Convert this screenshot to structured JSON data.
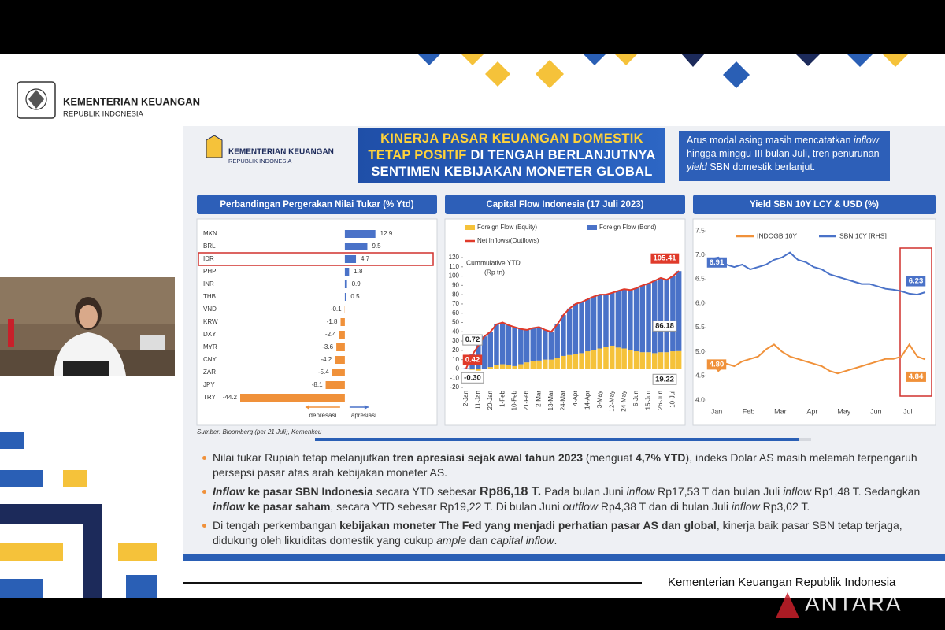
{
  "header": {
    "org": "KEMENTERIAN KEUANGAN",
    "country": "REPUBLIK INDONESIA"
  },
  "slide": {
    "logo": {
      "org": "KEMENTERIAN KEUANGAN",
      "country": "REPUBLIK INDONESIA"
    },
    "title": [
      {
        "text": "KINERJA PASAR KEUANGAN DOMESTIK TETAP POSITIF",
        "style": "highlight"
      },
      {
        "text": " DI TENGAH BERLANJUTNYA SENTIMEN KEBIJAKAN MONETER GLOBAL"
      }
    ],
    "summary": [
      {
        "text": "Arus modal asing masih mencatatkan "
      },
      {
        "text": "inflow",
        "style": "italic"
      },
      {
        "text": " hingga minggu-III bulan Juli, tren penurunan "
      },
      {
        "text": "yield",
        "style": "italic"
      },
      {
        "text": " SBN domestik berlanjut."
      }
    ],
    "source": "Sumber: Bloomberg (per 21 Juli), Kemenkeu",
    "bullets": [
      [
        {
          "text": "Nilai tukar Rupiah tetap melanjutkan "
        },
        {
          "text": "tren apresiasi sejak awal tahun 2023",
          "style": "bold"
        },
        {
          "text": " (menguat "
        },
        {
          "text": "4,7% YTD",
          "style": "bold"
        },
        {
          "text": "), indeks Dolar AS masih melemah terpengaruh persepsi pasar atas arah kebijakan moneter AS."
        }
      ],
      [
        {
          "text": "Inflow",
          "style": "bold-italic"
        },
        {
          "text": " ke pasar SBN Indonesia",
          "style": "bold"
        },
        {
          "text": " secara YTD sebesar "
        },
        {
          "text": "Rp86,18 T.",
          "style": "emphasis"
        },
        {
          "text": " Pada bulan Juni "
        },
        {
          "text": "inflow",
          "style": "italic"
        },
        {
          "text": " Rp17,53 T dan bulan Juli "
        },
        {
          "text": "inflow",
          "style": "italic"
        },
        {
          "text": " Rp1,48 T. Sedangkan "
        },
        {
          "text": "inflow",
          "style": "bold-italic"
        },
        {
          "text": " ke pasar saham",
          "style": "bold"
        },
        {
          "text": ", secara YTD sebesar Rp19,22 T. Di bulan Juni "
        },
        {
          "text": "outflow",
          "style": "italic"
        },
        {
          "text": " Rp4,38 T dan di bulan Juli "
        },
        {
          "text": "inflow",
          "style": "italic"
        },
        {
          "text": " Rp3,02 T."
        }
      ],
      [
        {
          "text": "Di tengah perkembangan "
        },
        {
          "text": "kebijakan moneter The Fed yang menjadi perhatian pasar AS dan global",
          "style": "bold"
        },
        {
          "text": ", kinerja baik pasar SBN tetap terjaga, didukung oleh likuiditas domestik yang cukup "
        },
        {
          "text": "ample",
          "style": "italic"
        },
        {
          "text": " dan "
        },
        {
          "text": "capital inflow",
          "style": "italic"
        },
        {
          "text": "."
        }
      ]
    ]
  },
  "chart_data": [
    {
      "type": "hbar",
      "title": "Perbandingan Pergerakan Nilai Tukar (% Ytd)",
      "categories": [
        "MXN",
        "BRL",
        "IDR",
        "PHP",
        "INR",
        "THB",
        "VND",
        "KRW",
        "DXY",
        "MYR",
        "CNY",
        "ZAR",
        "JPY",
        "TRY"
      ],
      "values": [
        12.9,
        9.5,
        4.7,
        1.8,
        0.9,
        0.5,
        -0.1,
        -1.8,
        -2.4,
        -3.6,
        -4.2,
        -5.4,
        -8.1,
        -44.2
      ],
      "colors": {
        "positive": "#4a72c8",
        "negative": "#f0913a"
      },
      "xlim": [
        -45,
        15
      ],
      "highlight": 2,
      "annotations": {
        "left": "depresasi",
        "right": "apresiasi"
      }
    },
    {
      "type": "stacked-bar-line",
      "title": "Capital Flow Indonesia (17 Juli 2023)",
      "y_label": [
        "Cummulative YTD",
        "(Rp tn)"
      ],
      "categories": [
        "2-Jan",
        null,
        "11-Jan",
        null,
        "20-Jan",
        null,
        "1-Feb",
        null,
        "10-Feb",
        null,
        "21-Feb",
        null,
        "2-Mar",
        null,
        "13-Mar",
        null,
        "24-Mar",
        null,
        "4-Apr",
        null,
        "14-Apr",
        null,
        "3-May",
        null,
        "12-May",
        null,
        "24-May",
        null,
        "6-Jun",
        null,
        "15-Jun",
        null,
        "26-Jun",
        null,
        "10-Jul",
        null
      ],
      "series": [
        {
          "name": "Foreign Flow (Equity)",
          "color": "#f5c23a",
          "kind": "bar",
          "values": [
            -0.3,
            -1,
            -2,
            0,
            2,
            4,
            5,
            4,
            3,
            5,
            7,
            8,
            9,
            10,
            10,
            12,
            14,
            15,
            16,
            17,
            19,
            20,
            22,
            24,
            25,
            23,
            22,
            20,
            19,
            18,
            18,
            17,
            18,
            18,
            19,
            19.22
          ],
          "value_labels": [
            "-0.30",
            null,
            null,
            null,
            null,
            null,
            null,
            null,
            null,
            null,
            null,
            null,
            null,
            null,
            null,
            null,
            null,
            null,
            null,
            null,
            null,
            null,
            null,
            null,
            null,
            null,
            null,
            null,
            null,
            null,
            null,
            null,
            null,
            null,
            null,
            "19.22"
          ]
        },
        {
          "name": "Foreign Flow (Bond)",
          "color": "#4a72c8",
          "kind": "bar",
          "values": [
            0.72,
            16,
            27,
            35,
            38,
            44,
            45,
            43,
            42,
            38,
            35,
            36,
            36,
            32,
            30,
            36,
            44,
            50,
            54,
            55,
            56,
            58,
            58,
            56,
            57,
            61,
            64,
            65,
            68,
            72,
            74,
            78,
            80,
            78,
            81,
            86.18
          ],
          "value_labels": [
            "0.72",
            null,
            null,
            null,
            null,
            null,
            null,
            null,
            null,
            null,
            null,
            null,
            null,
            null,
            null,
            null,
            null,
            null,
            null,
            null,
            null,
            null,
            null,
            null,
            null,
            null,
            null,
            null,
            null,
            null,
            null,
            null,
            null,
            null,
            null,
            "86.18"
          ]
        },
        {
          "name": "Net Inflows/(Outflows)",
          "color": "#e03a2a",
          "kind": "line",
          "values": [
            0.42,
            15,
            25,
            35,
            40,
            48,
            50,
            47,
            45,
            43,
            42,
            44,
            45,
            42,
            40,
            48,
            58,
            65,
            70,
            72,
            75,
            78,
            80,
            80,
            82,
            84,
            86,
            85,
            87,
            90,
            92,
            95,
            98,
            96,
            100,
            105.41
          ],
          "value_labels": [
            "0.42",
            null,
            null,
            null,
            null,
            null,
            null,
            null,
            null,
            null,
            null,
            null,
            null,
            null,
            null,
            null,
            null,
            null,
            null,
            null,
            null,
            null,
            null,
            null,
            null,
            null,
            null,
            null,
            null,
            null,
            null,
            null,
            null,
            null,
            null,
            "105.41"
          ]
        }
      ],
      "ylim": [
        -20,
        120
      ],
      "yticks": [
        -20,
        -10,
        0,
        10,
        20,
        30,
        40,
        50,
        60,
        70,
        80,
        90,
        100,
        110,
        120
      ]
    },
    {
      "type": "line",
      "title": "Yield SBN 10Y LCY & USD (%)",
      "categories": [
        "Jan",
        null,
        null,
        null,
        "Feb",
        null,
        null,
        null,
        "Mar",
        null,
        null,
        null,
        "Apr",
        null,
        null,
        null,
        "May",
        null,
        null,
        null,
        "Jun",
        null,
        null,
        null,
        "Jul",
        null,
        null,
        null
      ],
      "series": [
        {
          "name": "INDOGB 10Y",
          "color": "#f0913a",
          "values": [
            4.8,
            4.6,
            4.75,
            4.7,
            4.8,
            4.85,
            4.9,
            5.05,
            5.15,
            5.0,
            4.9,
            4.85,
            4.8,
            4.75,
            4.7,
            4.6,
            4.55,
            4.6,
            4.65,
            4.7,
            4.75,
            4.8,
            4.85,
            4.85,
            4.9,
            5.15,
            4.9,
            4.84
          ],
          "value_labels": [
            "4.80",
            null,
            null,
            null,
            null,
            null,
            null,
            null,
            null,
            null,
            null,
            null,
            null,
            null,
            null,
            null,
            null,
            null,
            null,
            null,
            null,
            null,
            null,
            null,
            null,
            null,
            null,
            "4.84"
          ]
        },
        {
          "name": "SBN 10Y [RHS]",
          "color": "#4a72c8",
          "values": [
            6.91,
            6.95,
            6.8,
            6.75,
            6.8,
            6.7,
            6.75,
            6.8,
            6.9,
            6.95,
            7.05,
            6.9,
            6.85,
            6.75,
            6.7,
            6.6,
            6.55,
            6.5,
            6.45,
            6.4,
            6.4,
            6.35,
            6.3,
            6.28,
            6.25,
            6.2,
            6.18,
            6.23
          ],
          "value_labels": [
            "6.91",
            null,
            null,
            null,
            null,
            null,
            null,
            null,
            null,
            null,
            null,
            null,
            null,
            null,
            null,
            null,
            null,
            null,
            null,
            null,
            null,
            null,
            null,
            null,
            null,
            null,
            null,
            "6.23"
          ]
        }
      ],
      "ylim": [
        4.0,
        7.5
      ],
      "yticks": [
        {
          "value": 4,
          "label": "4.0"
        },
        4.5,
        {
          "value": 5,
          "label": "5.0"
        },
        5.5,
        {
          "value": 6,
          "label": "6.0"
        },
        6.5,
        {
          "value": 7,
          "label": "7.0"
        },
        7.5
      ]
    }
  ],
  "footer": "Kementerian Keuangan Republik Indonesia",
  "watermark": "ANTARA"
}
